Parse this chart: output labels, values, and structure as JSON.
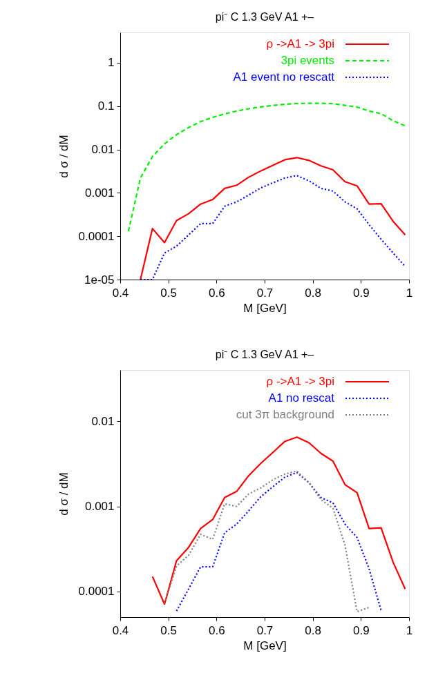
{
  "chart_data": [
    {
      "type": "line",
      "title": "pi⁻ C 1.3 GeV A1 +–",
      "xlabel": "M [GeV]",
      "ylabel": "d σ / dM",
      "log": "y",
      "grid": false,
      "legend": "top right",
      "marker": "none",
      "xlim": [
        0.4,
        1.0
      ],
      "xticks": [
        0.4,
        0.5,
        0.6,
        0.7,
        0.8,
        0.9,
        1
      ],
      "ylim": [
        1e-05,
        5
      ],
      "yticks": [
        {
          "value": 1e-05,
          "label": "1e-05"
        },
        0.0001,
        0.001,
        0.01,
        0.1,
        1
      ],
      "x": [
        0.417,
        0.442,
        0.467,
        0.492,
        0.517,
        0.542,
        0.567,
        0.592,
        0.617,
        0.642,
        0.667,
        0.692,
        0.717,
        0.742,
        0.767,
        0.792,
        0.817,
        0.842,
        0.867,
        0.892,
        0.917,
        0.942,
        0.967,
        0.992
      ],
      "series": [
        {
          "name": "ρ ->A1 -> 3pi",
          "color": "#ff0000",
          "line_style": "solid",
          "values": [
            null,
            1e-05,
            0.00015,
            7.1e-05,
            0.00023,
            0.00033,
            0.00055,
            0.0007,
            0.00127,
            0.0015,
            0.0023,
            0.0032,
            0.0043,
            0.0058,
            0.0065,
            0.0056,
            0.0042,
            0.0034,
            0.0018,
            0.00145,
            0.00055,
            0.00056,
            0.00022,
            0.000107
          ]
        },
        {
          "name": "3pi events",
          "color": "#00ee00",
          "line_style": "dashed",
          "values": [
            0.00013,
            0.0022,
            0.0069,
            0.0135,
            0.022,
            0.032,
            0.044,
            0.055,
            0.066,
            0.077,
            0.087,
            0.096,
            0.104,
            0.11,
            0.115,
            0.116,
            0.116,
            0.114,
            0.104,
            0.095,
            0.077,
            0.067,
            0.046,
            0.035
          ]
        },
        {
          "name": "A1 event no rescatt",
          "color": "#0000ff",
          "line_style": "dotted",
          "values": [
            null,
            1e-05,
            1e-05,
            4.1e-05,
            5.9e-05,
            0.000107,
            0.000195,
            0.000195,
            0.00049,
            0.00062,
            0.00089,
            0.0013,
            0.0017,
            0.0022,
            0.0025,
            0.0019,
            0.00127,
            0.0011,
            0.00062,
            0.00043,
            0.000185,
            8.5e-05,
            4.1e-05,
            2e-05
          ]
        }
      ]
    },
    {
      "type": "line",
      "title": "pi⁻ C 1.3 GeV A1 +–",
      "xlabel": "M [GeV]",
      "ylabel": "d σ / dM",
      "log": "y",
      "grid": false,
      "legend": "top right",
      "marker": "none",
      "xlim": [
        0.4,
        1.0
      ],
      "xticks": [
        0.4,
        0.5,
        0.6,
        0.7,
        0.8,
        0.9,
        1
      ],
      "ylim": [
        5e-05,
        0.04
      ],
      "yticks": [
        0.0001,
        0.001,
        0.01
      ],
      "x": [
        0.467,
        0.492,
        0.517,
        0.542,
        0.567,
        0.592,
        0.617,
        0.642,
        0.667,
        0.692,
        0.717,
        0.742,
        0.767,
        0.792,
        0.817,
        0.842,
        0.867,
        0.892,
        0.917,
        0.942,
        0.967,
        0.992
      ],
      "series": [
        {
          "name": "ρ ->A1 -> 3pi",
          "color": "#ff0000",
          "line_style": "solid",
          "values": [
            0.00015,
            7.1e-05,
            0.00023,
            0.00033,
            0.00055,
            0.0007,
            0.00127,
            0.0015,
            0.0023,
            0.0032,
            0.0043,
            0.0058,
            0.0065,
            0.0056,
            0.0042,
            0.0034,
            0.0018,
            0.00145,
            0.00055,
            0.00056,
            0.00022,
            0.000107
          ]
        },
        {
          "name": "A1 no rescat",
          "color": "#0000ff",
          "line_style": "dotted",
          "values": [
            null,
            null,
            5.9e-05,
            0.000107,
            0.000195,
            0.000195,
            0.00049,
            0.00062,
            0.00089,
            0.0013,
            0.0017,
            0.0022,
            0.0025,
            0.0019,
            0.00127,
            0.0011,
            0.00062,
            0.00043,
            0.000185,
            6e-05,
            null,
            null
          ]
        },
        {
          "name": "cut 3π background",
          "color": "#808080",
          "line_style": "dotted",
          "values": [
            null,
            7.2e-05,
            0.0002,
            0.000266,
            0.00047,
            0.00041,
            0.00107,
            0.001,
            0.0014,
            0.00165,
            0.00205,
            0.0024,
            0.0026,
            0.0019,
            0.0012,
            0.00095,
            0.00035,
            5.8e-05,
            6.5e-05,
            null,
            null,
            null
          ]
        }
      ]
    }
  ]
}
